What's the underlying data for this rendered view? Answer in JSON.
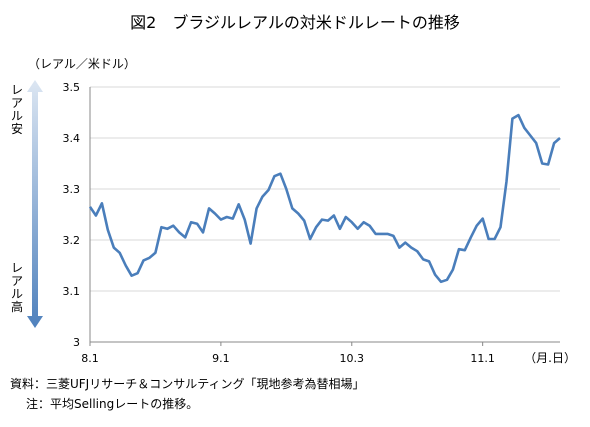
{
  "title": "図2　ブラジルレアルの対米ドルレートの推移",
  "y_unit": "（レアル／米ドル）",
  "x_unit": "（月.日）",
  "weak_label": "レアル安",
  "strong_label": "レアル高",
  "source": "資料：三菱UFJリサーチ＆コンサルティング「現地参考為替相場」",
  "note": "注：平均Sellingレートの推移。",
  "colors": {
    "line": "#4a7ebb",
    "grid": "#d9d9d9",
    "arrow_dark": "#4f81bd",
    "arrow_light": "#dce6f2"
  },
  "chart_data": {
    "type": "line",
    "title": "図2　ブラジルレアルの対米ドルレートの推移",
    "ylabel": "（レアル／米ドル）",
    "xlabel": "（月.日）",
    "ylim": [
      3,
      3.5
    ],
    "yticks": [
      "3",
      "3.1",
      "3.2",
      "3.3",
      "3.4",
      "3.5"
    ],
    "xticks": [
      "8.1",
      "9.1",
      "10.3",
      "11.1"
    ],
    "xtick_index": [
      0,
      22,
      44,
      66
    ],
    "grid": true,
    "values": [
      3.265,
      3.248,
      3.272,
      3.22,
      3.185,
      3.175,
      3.15,
      3.13,
      3.135,
      3.16,
      3.165,
      3.175,
      3.225,
      3.222,
      3.228,
      3.215,
      3.205,
      3.235,
      3.232,
      3.215,
      3.262,
      3.252,
      3.24,
      3.245,
      3.242,
      3.27,
      3.24,
      3.193,
      3.262,
      3.285,
      3.298,
      3.325,
      3.33,
      3.3,
      3.262,
      3.252,
      3.238,
      3.202,
      3.225,
      3.24,
      3.238,
      3.248,
      3.222,
      3.245,
      3.235,
      3.222,
      3.235,
      3.228,
      3.212,
      3.212,
      3.212,
      3.208,
      3.185,
      3.195,
      3.185,
      3.178,
      3.162,
      3.158,
      3.132,
      3.118,
      3.122,
      3.142,
      3.182,
      3.18,
      3.205,
      3.228,
      3.242,
      3.202,
      3.202,
      3.225,
      3.315,
      3.438,
      3.445,
      3.42,
      3.405,
      3.39,
      3.35,
      3.348,
      3.39,
      3.4
    ]
  }
}
